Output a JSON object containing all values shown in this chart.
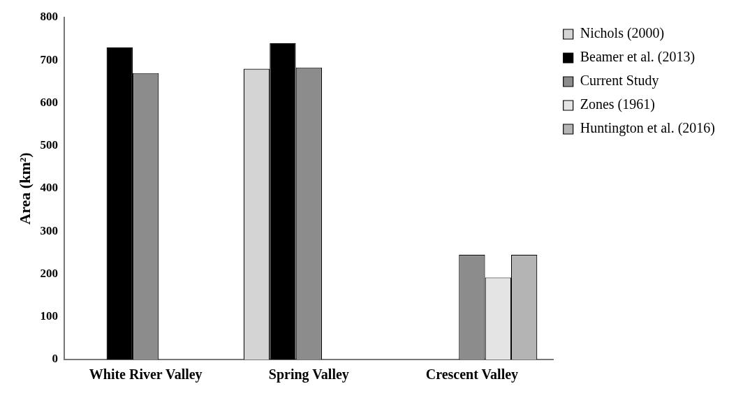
{
  "chart_data": {
    "type": "bar",
    "ylabel": "Area (km²)",
    "categories": [
      "White River Valley",
      "Spring Valley",
      "Crescent Valley"
    ],
    "series": [
      {
        "name": "Nichols (2000)",
        "color": "#d4d4d4",
        "values": [
          null,
          680,
          null
        ]
      },
      {
        "name": "Beamer et al. (2013)",
        "color": "#000000",
        "values": [
          730,
          740,
          null
        ]
      },
      {
        "name": "Current Study",
        "color": "#8c8c8c",
        "values": [
          670,
          683,
          245
        ]
      },
      {
        "name": "Zones (1961)",
        "color": "#e4e4e4",
        "values": [
          null,
          null,
          192
        ]
      },
      {
        "name": "Huntington et al. (2016)",
        "color": "#b4b4b4",
        "values": [
          null,
          null,
          245
        ]
      }
    ],
    "ylim": [
      0,
      800
    ],
    "yticks": [
      0,
      100,
      200,
      300,
      400,
      500,
      600,
      700,
      800
    ],
    "grid": false,
    "legend": "right"
  }
}
